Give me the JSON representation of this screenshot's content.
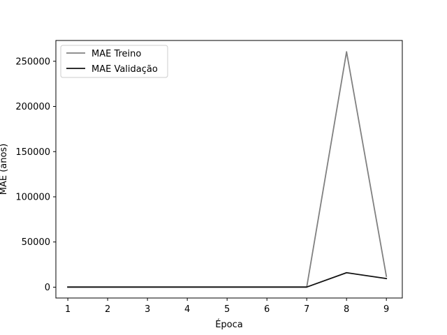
{
  "chart_data": {
    "type": "line",
    "title": "",
    "xlabel": "Época",
    "ylabel": "MAE (anos)",
    "x": [
      1,
      2,
      3,
      4,
      5,
      6,
      7,
      8,
      9
    ],
    "xlim": [
      0.7,
      9.4
    ],
    "ylim": [
      -12000,
      273000
    ],
    "xticks": [
      1,
      2,
      3,
      4,
      5,
      6,
      7,
      8,
      9
    ],
    "yticks": [
      0,
      50000,
      100000,
      150000,
      200000,
      250000
    ],
    "ytick_labels": [
      "0",
      "50000",
      "100000",
      "150000",
      "200000",
      "250000"
    ],
    "grid": false,
    "legend_position": "upper-left",
    "series": [
      {
        "name": "MAE Treino",
        "color": "#808080",
        "values": [
          100,
          100,
          100,
          100,
          100,
          100,
          100,
          260500,
          12000
        ]
      },
      {
        "name": "MAE Validação",
        "color": "#111111",
        "values": [
          100,
          100,
          100,
          100,
          100,
          100,
          100,
          16000,
          9500
        ]
      }
    ]
  }
}
